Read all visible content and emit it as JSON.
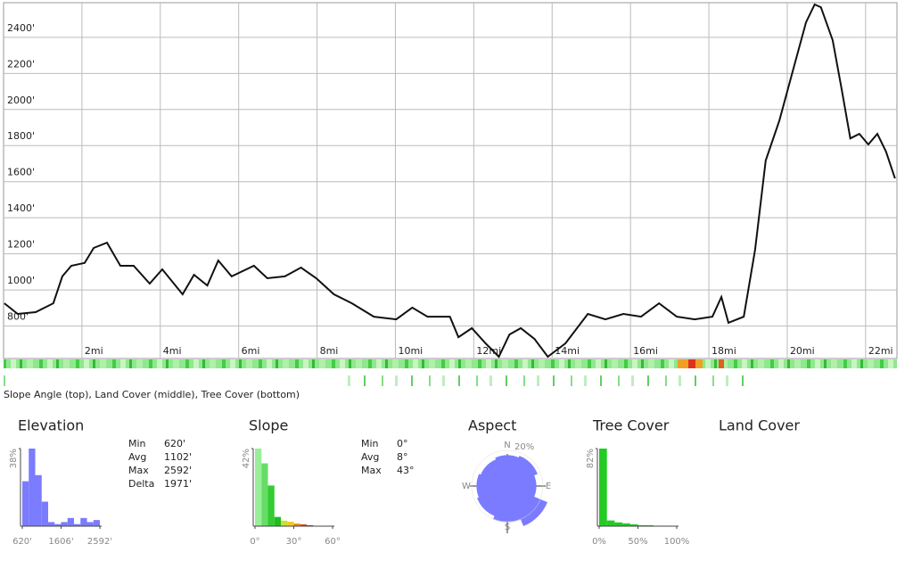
{
  "chart_data": [
    {
      "type": "line",
      "x": [
        0.02,
        0.36,
        0.82,
        1.27,
        1.5,
        1.73,
        2.07,
        2.3,
        2.64,
        2.98,
        3.32,
        3.73,
        4.05,
        4.57,
        4.86,
        5.2,
        5.48,
        5.82,
        6.39,
        6.73,
        7.18,
        7.59,
        7.98,
        8.43,
        8.89,
        9.45,
        10.02,
        10.43,
        10.82,
        11.39,
        11.61,
        11.95,
        12.3,
        12.64,
        12.91,
        13.2,
        13.55,
        13.89,
        14.34,
        14.91,
        15.36,
        15.82,
        16.27,
        16.73,
        17.18,
        17.64,
        18.09,
        18.32,
        18.5,
        18.89,
        19.18,
        19.45,
        19.8,
        20.14,
        20.48,
        20.7,
        20.86,
        21.16,
        21.39,
        21.61,
        21.84,
        22.07,
        22.3,
        22.52,
        22.75
      ],
      "series": [
        {
          "color": "#111111",
          "values": [
            926,
            867,
            877,
            926,
            1075,
            1134,
            1150,
            1233,
            1262,
            1134,
            1134,
            1035,
            1114,
            976,
            1084,
            1025,
            1163,
            1075,
            1134,
            1065,
            1075,
            1124,
            1065,
            976,
            926,
            852,
            837,
            902,
            852,
            852,
            738,
            788,
            704,
            630,
            753,
            788,
            728,
            630,
            704,
            867,
            837,
            867,
            852,
            926,
            852,
            837,
            852,
            961,
            818,
            852,
            1223,
            1717,
            1940,
            2212,
            2483,
            2582,
            2567,
            2384,
            2112,
            1840,
            1865,
            1806,
            1865,
            1767,
            1618
          ]
        }
      ],
      "xlim": [
        0,
        22.8
      ],
      "ylim": [
        620,
        2592
      ],
      "xticks": [
        {
          "value": 2,
          "label": "2mi"
        },
        {
          "value": 4,
          "label": "4mi"
        },
        {
          "value": 6,
          "label": "6mi"
        },
        {
          "value": 8,
          "label": "8mi"
        },
        {
          "value": 10,
          "label": "10mi"
        },
        {
          "value": 12,
          "label": "12mi"
        },
        {
          "value": 14,
          "label": "14mi"
        },
        {
          "value": 16,
          "label": "16mi"
        },
        {
          "value": 18,
          "label": "18mi"
        },
        {
          "value": 20,
          "label": "20mi"
        },
        {
          "value": 22,
          "label": "22mi"
        }
      ],
      "yticks": [
        {
          "value": 800,
          "label": "800'"
        },
        {
          "value": 1000,
          "label": "1000'"
        },
        {
          "value": 1200,
          "label": "1200'"
        },
        {
          "value": 1400,
          "label": "1400'"
        },
        {
          "value": 1600,
          "label": "1600'"
        },
        {
          "value": 1800,
          "label": "1800'"
        },
        {
          "value": 2000,
          "label": "2000'"
        },
        {
          "value": 2200,
          "label": "2200'"
        },
        {
          "value": 2400,
          "label": "2400'"
        }
      ],
      "grid": true
    },
    {
      "type": "histogram",
      "title": "Elevation",
      "bins": [
        620,
        784,
        949,
        1113,
        1277,
        1442,
        1606,
        1770,
        1935,
        2099,
        2263,
        2428,
        2592
      ],
      "values": [
        22,
        38,
        25,
        12,
        2,
        1,
        2,
        4,
        1,
        4,
        2,
        3
      ],
      "color": "#7b7bff",
      "xlim": [
        620,
        2592
      ],
      "ylim": [
        0,
        38
      ],
      "xticks": [
        {
          "value": 620,
          "label": "620'"
        },
        {
          "value": 1606,
          "label": "1606'"
        },
        {
          "value": 2592,
          "label": "2592'"
        }
      ],
      "yticks": [
        {
          "value": 38,
          "label": "38%"
        }
      ],
      "stats": [
        {
          "label": "Min",
          "value": "620'"
        },
        {
          "label": "Avg",
          "value": "1102'"
        },
        {
          "label": "Max",
          "value": "2592'"
        },
        {
          "label": "Delta",
          "value": "1971'"
        }
      ]
    },
    {
      "type": "histogram",
      "title": "Slope",
      "bins": [
        0,
        5,
        10,
        15,
        20,
        25,
        30,
        35,
        40,
        45
      ],
      "values": [
        42,
        34,
        22,
        5,
        3,
        2.4,
        1.4,
        1,
        0.5
      ],
      "colors": [
        "#99ee99",
        "#66dd66",
        "#33cc33",
        "#22bb22",
        "#ccdd33",
        "#eecc22",
        "#ee8822",
        "#dd4422",
        "#cc2222"
      ],
      "xlim": [
        0,
        60
      ],
      "ylim": [
        0,
        42
      ],
      "xticks": [
        {
          "value": 0,
          "label": "0°"
        },
        {
          "value": 30,
          "label": "30°"
        },
        {
          "value": 60,
          "label": "60°"
        }
      ],
      "yticks": [
        {
          "value": 42,
          "label": "42%"
        }
      ],
      "stats": [
        {
          "label": "Min",
          "value": "0°"
        },
        {
          "label": "Avg",
          "value": "8°"
        },
        {
          "label": "Max",
          "value": "43°"
        }
      ]
    },
    {
      "type": "rose",
      "title": "Aspect",
      "categories": [
        "N",
        null,
        "E",
        null,
        "S",
        null,
        "W",
        null
      ],
      "values": [
        17,
        18,
        16,
        24,
        20,
        18,
        17,
        16
      ],
      "color": "#7b7bff",
      "rlim": [
        0,
        25
      ],
      "rticks": [
        {
          "value": 20,
          "label": "20%"
        }
      ]
    },
    {
      "type": "histogram",
      "title": "Tree Cover",
      "bins": [
        0,
        10,
        20,
        30,
        40,
        50,
        60,
        70,
        80,
        90,
        100
      ],
      "values": [
        82,
        6,
        4,
        3,
        2,
        1,
        1,
        0.5,
        0.5,
        0.3
      ],
      "color": "#22cc22",
      "xlim": [
        0,
        100
      ],
      "ylim": [
        0,
        82
      ],
      "xticks": [
        {
          "value": 0,
          "label": "0%"
        },
        {
          "value": 50,
          "label": "50%"
        },
        {
          "value": 100,
          "label": "100%"
        }
      ],
      "yticks": [
        {
          "value": 82,
          "label": "82%"
        }
      ]
    }
  ],
  "caption": "Slope Angle (top), Land Cover (middle), Tree Cover (bottom)",
  "land_cover": {
    "title": "Land Cover"
  }
}
